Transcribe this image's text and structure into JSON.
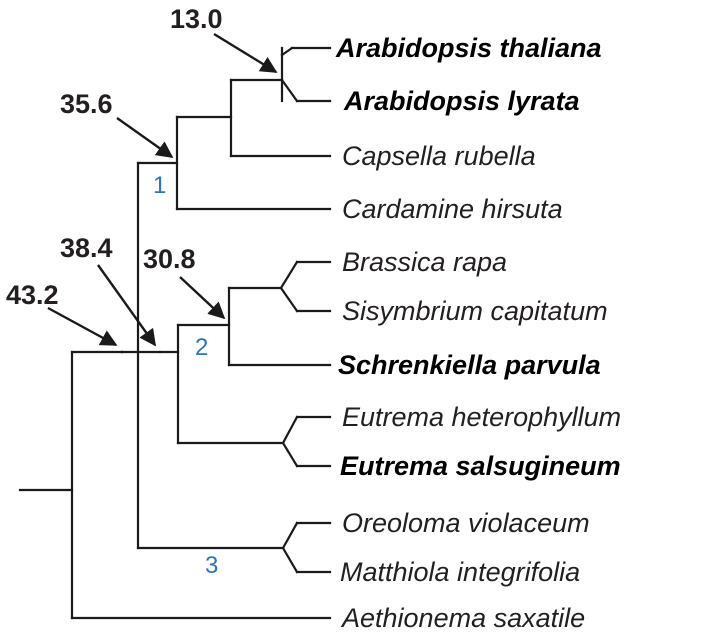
{
  "taxa": [
    {
      "name": "Arabidopsis thaliana",
      "bold": true
    },
    {
      "name": "Arabidopsis lyrata",
      "bold": true
    },
    {
      "name": "Capsella rubella",
      "bold": false
    },
    {
      "name": "Cardamine hirsuta",
      "bold": false
    },
    {
      "name": "Brassica rapa",
      "bold": false
    },
    {
      "name": "Sisymbrium capitatum",
      "bold": false
    },
    {
      "name": "Schrenkiella parvula",
      "bold": true
    },
    {
      "name": "Eutrema heterophyllum",
      "bold": false
    },
    {
      "name": "Eutrema salsugineum",
      "bold": true
    },
    {
      "name": "Oreoloma violaceum",
      "bold": false
    },
    {
      "name": "Matthiola integrifolia",
      "bold": false
    },
    {
      "name": "Aethionema saxatile",
      "bold": false
    }
  ],
  "divergence_times": {
    "arabidopsis": "13.0",
    "node1": "35.6",
    "node2": "30.8",
    "lineage_split": "38.4",
    "root_crown": "43.2"
  },
  "node_numbers": {
    "n1": "1",
    "n2": "2",
    "n3": "3"
  },
  "colors": {
    "line": "#1a1a1a",
    "text": "#231f20",
    "node_number": "#2e75b6"
  }
}
